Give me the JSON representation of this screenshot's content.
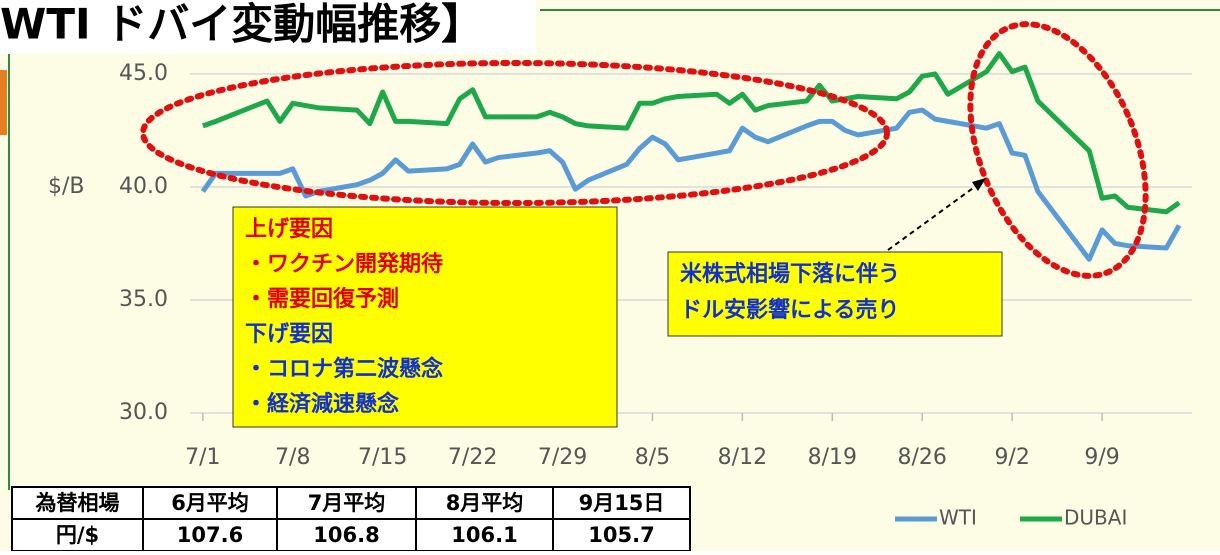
{
  "chart_data": {
    "type": "line",
    "title": "WTI ドバイ変動幅推移】",
    "y_label": "$/B",
    "x": [
      0,
      1,
      5,
      6,
      7,
      8,
      9,
      12,
      13,
      14,
      15,
      16,
      19,
      20,
      21,
      22,
      23,
      26,
      27,
      28,
      29,
      30,
      33,
      34,
      35,
      36,
      37,
      40,
      41,
      42,
      43,
      44,
      47,
      48,
      49,
      50,
      51,
      54,
      55,
      56,
      57,
      58,
      61,
      62,
      63,
      64,
      65,
      69,
      70,
      71,
      72,
      75,
      76
    ],
    "series": [
      {
        "name": "WTI",
        "color": "#5b9bd5",
        "values": [
          39.8,
          40.6,
          40.6,
          40.6,
          40.8,
          39.6,
          39.8,
          40.1,
          40.3,
          40.6,
          41.2,
          40.7,
          40.8,
          41.0,
          41.9,
          41.1,
          41.3,
          41.5,
          41.6,
          41.1,
          39.9,
          40.3,
          41.0,
          41.7,
          42.2,
          41.9,
          41.2,
          41.5,
          41.6,
          42.6,
          42.2,
          42.0,
          42.7,
          42.9,
          42.9,
          42.5,
          42.3,
          42.6,
          43.3,
          43.4,
          43.0,
          42.9,
          42.6,
          42.8,
          41.5,
          41.4,
          39.8,
          36.8,
          38.1,
          37.5,
          37.4,
          37.3,
          38.3
        ]
      },
      {
        "name": "DUBAI",
        "color": "#1fa84a",
        "values": [
          42.7,
          42.9,
          43.8,
          42.9,
          43.7,
          43.6,
          43.5,
          43.4,
          42.8,
          44.2,
          42.9,
          42.9,
          42.8,
          43.9,
          44.3,
          43.1,
          43.1,
          43.1,
          43.3,
          43.1,
          42.8,
          42.7,
          42.6,
          43.7,
          43.7,
          43.9,
          44.0,
          44.1,
          43.7,
          44.1,
          43.4,
          43.6,
          43.8,
          44.5,
          43.8,
          43.9,
          44.0,
          43.9,
          44.2,
          44.9,
          45.0,
          44.1,
          45.1,
          45.9,
          45.1,
          45.3,
          43.8,
          41.6,
          39.5,
          39.6,
          39.1,
          38.9,
          39.3
        ]
      }
    ],
    "xlim": [
      -1,
      77
    ],
    "xticks": [
      {
        "value": 0,
        "label": "7/1"
      },
      {
        "value": 7,
        "label": "7/8"
      },
      {
        "value": 14,
        "label": "7/15"
      },
      {
        "value": 21,
        "label": "7/22"
      },
      {
        "value": 28,
        "label": "7/29"
      },
      {
        "value": 35,
        "label": "8/5"
      },
      {
        "value": 42,
        "label": "8/12"
      },
      {
        "value": 49,
        "label": "8/19"
      },
      {
        "value": 56,
        "label": "8/26"
      },
      {
        "value": 63,
        "label": "9/2"
      },
      {
        "value": 70,
        "label": "9/9"
      }
    ],
    "ylim": [
      30,
      45.35
    ],
    "yticks": [
      {
        "value": 30,
        "label": "30.0"
      },
      {
        "value": 35,
        "label": "35.0"
      },
      {
        "value": 40,
        "label": "40.0"
      },
      {
        "value": 45,
        "label": "45.0"
      }
    ],
    "grid": true,
    "legend": "bottom-right",
    "annotations": {
      "factors": [
        "上げ要因",
        "・ワクチン開発期待",
        "・需要回復予測",
        "下げ要因",
        "・コロナ第二波懸念",
        "・経済減速懸念"
      ],
      "note": [
        "米株式相場下落に伴う",
        "ドル安影響による売り"
      ]
    }
  },
  "table": {
    "header": [
      "為替相場",
      "6月平均",
      "7月平均",
      "8月平均",
      "9月15日"
    ],
    "rows": [
      [
        "円/$",
        "107.6",
        "106.8",
        "106.1",
        "105.7"
      ]
    ]
  }
}
